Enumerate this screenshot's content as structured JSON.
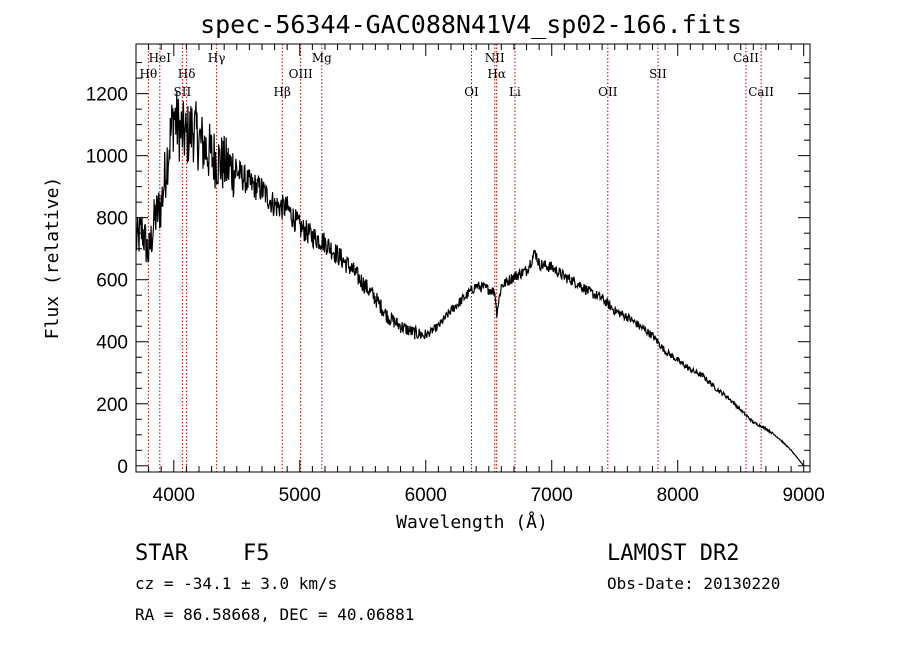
{
  "chart_data": {
    "type": "line",
    "title": "spec-56344-GAC088N41V4_sp02-166.fits",
    "xlabel": "Wavelength (Å)",
    "ylabel": "Flux (relative)",
    "xlim": [
      3700,
      9050
    ],
    "ylim": [
      -20,
      1360
    ],
    "x_ticks": [
      4000,
      5000,
      6000,
      7000,
      8000,
      9000
    ],
    "y_ticks": [
      0,
      200,
      400,
      600,
      800,
      1000,
      1200
    ],
    "grid": false,
    "series": [
      {
        "x": [
          3700,
          3750,
          3800,
          3850,
          3900,
          3950,
          4000,
          4050,
          4100,
          4150,
          4200,
          4300,
          4400,
          4500,
          4600,
          4700,
          4800,
          4900,
          5000,
          5100,
          5200,
          5300,
          5400,
          5500,
          5600,
          5700,
          5800,
          5900,
          6000,
          6100,
          6200,
          6300,
          6400,
          6500,
          6550,
          6563,
          6600,
          6700,
          6800,
          6870,
          6900,
          7000,
          7100,
          7200,
          7300,
          7400,
          7500,
          7600,
          7700,
          7800,
          7900,
          8000,
          8100,
          8200,
          8300,
          8400,
          8500,
          8600,
          8700,
          8800,
          8900,
          9000
        ],
        "y": [
          720,
          760,
          680,
          800,
          840,
          1000,
          1130,
          1080,
          1060,
          1090,
          1050,
          1000,
          970,
          950,
          910,
          890,
          840,
          830,
          770,
          740,
          720,
          680,
          640,
          590,
          540,
          480,
          450,
          430,
          420,
          450,
          500,
          540,
          580,
          570,
          560,
          490,
          580,
          610,
          630,
          690,
          650,
          640,
          610,
          590,
          560,
          540,
          500,
          480,
          450,
          420,
          370,
          340,
          310,
          290,
          250,
          220,
          180,
          140,
          120,
          90,
          50,
          0
        ]
      }
    ],
    "spectral_lines": [
      {
        "label": "Hθ",
        "x": 3798,
        "row": 2
      },
      {
        "label": "HeI",
        "x": 3889,
        "row": 1
      },
      {
        "label": "SII",
        "x": 4068,
        "row": 3
      },
      {
        "label": "Hδ",
        "x": 4102,
        "row": 2
      },
      {
        "label": "Hγ",
        "x": 4340,
        "row": 1
      },
      {
        "label": "Hβ",
        "x": 4861,
        "row": 3
      },
      {
        "label": "OIII",
        "x": 5007,
        "row": 2
      },
      {
        "label": "Mg",
        "x": 5175,
        "row": 1
      },
      {
        "label": "OI",
        "x": 6363,
        "row": 3
      },
      {
        "label": "NII",
        "x": 6548,
        "row": 1
      },
      {
        "label": "Hα",
        "x": 6563,
        "row": 2
      },
      {
        "label": "Li",
        "x": 6708,
        "row": 3
      },
      {
        "label": "OII",
        "x": 7445,
        "row": 3
      },
      {
        "label": "SII",
        "x": 7843,
        "row": 2
      },
      {
        "label": "CaII",
        "x": 8542,
        "row": 1
      },
      {
        "label": "CaII",
        "x": 8662,
        "row": 3
      }
    ],
    "line_color": "#000000",
    "marker_color": "#b00000"
  },
  "info": {
    "object_class": "STAR",
    "subclass": "F5",
    "survey": "LAMOST DR2",
    "cz": "cz = -34.1 ± 3.0 km/s",
    "obs_date": "Obs-Date: 20130220",
    "coords": "RA =  86.58668, DEC =  40.06881"
  }
}
